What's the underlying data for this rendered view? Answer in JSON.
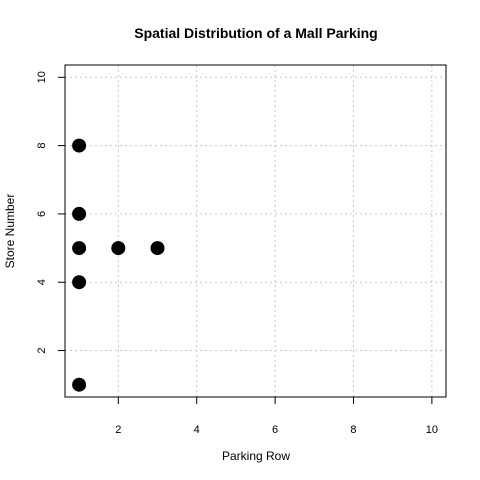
{
  "chart_data": {
    "type": "scatter",
    "title": "Spatial Distribution of a Mall Parking",
    "xlabel": "Parking Row",
    "ylabel": "Store Number",
    "xlim": [
      0.64,
      10.36
    ],
    "ylim": [
      0.64,
      10.36
    ],
    "xticks": [
      2,
      4,
      6,
      8,
      10
    ],
    "yticks": [
      2,
      4,
      6,
      8,
      10
    ],
    "grid": true,
    "points": [
      {
        "x": 1,
        "y": 8
      },
      {
        "x": 1,
        "y": 6
      },
      {
        "x": 1,
        "y": 5
      },
      {
        "x": 2,
        "y": 5
      },
      {
        "x": 3,
        "y": 5
      },
      {
        "x": 1,
        "y": 4
      },
      {
        "x": 1,
        "y": 1
      }
    ],
    "colors": {
      "point": "#000000",
      "grid": "#c8c8c8"
    }
  }
}
